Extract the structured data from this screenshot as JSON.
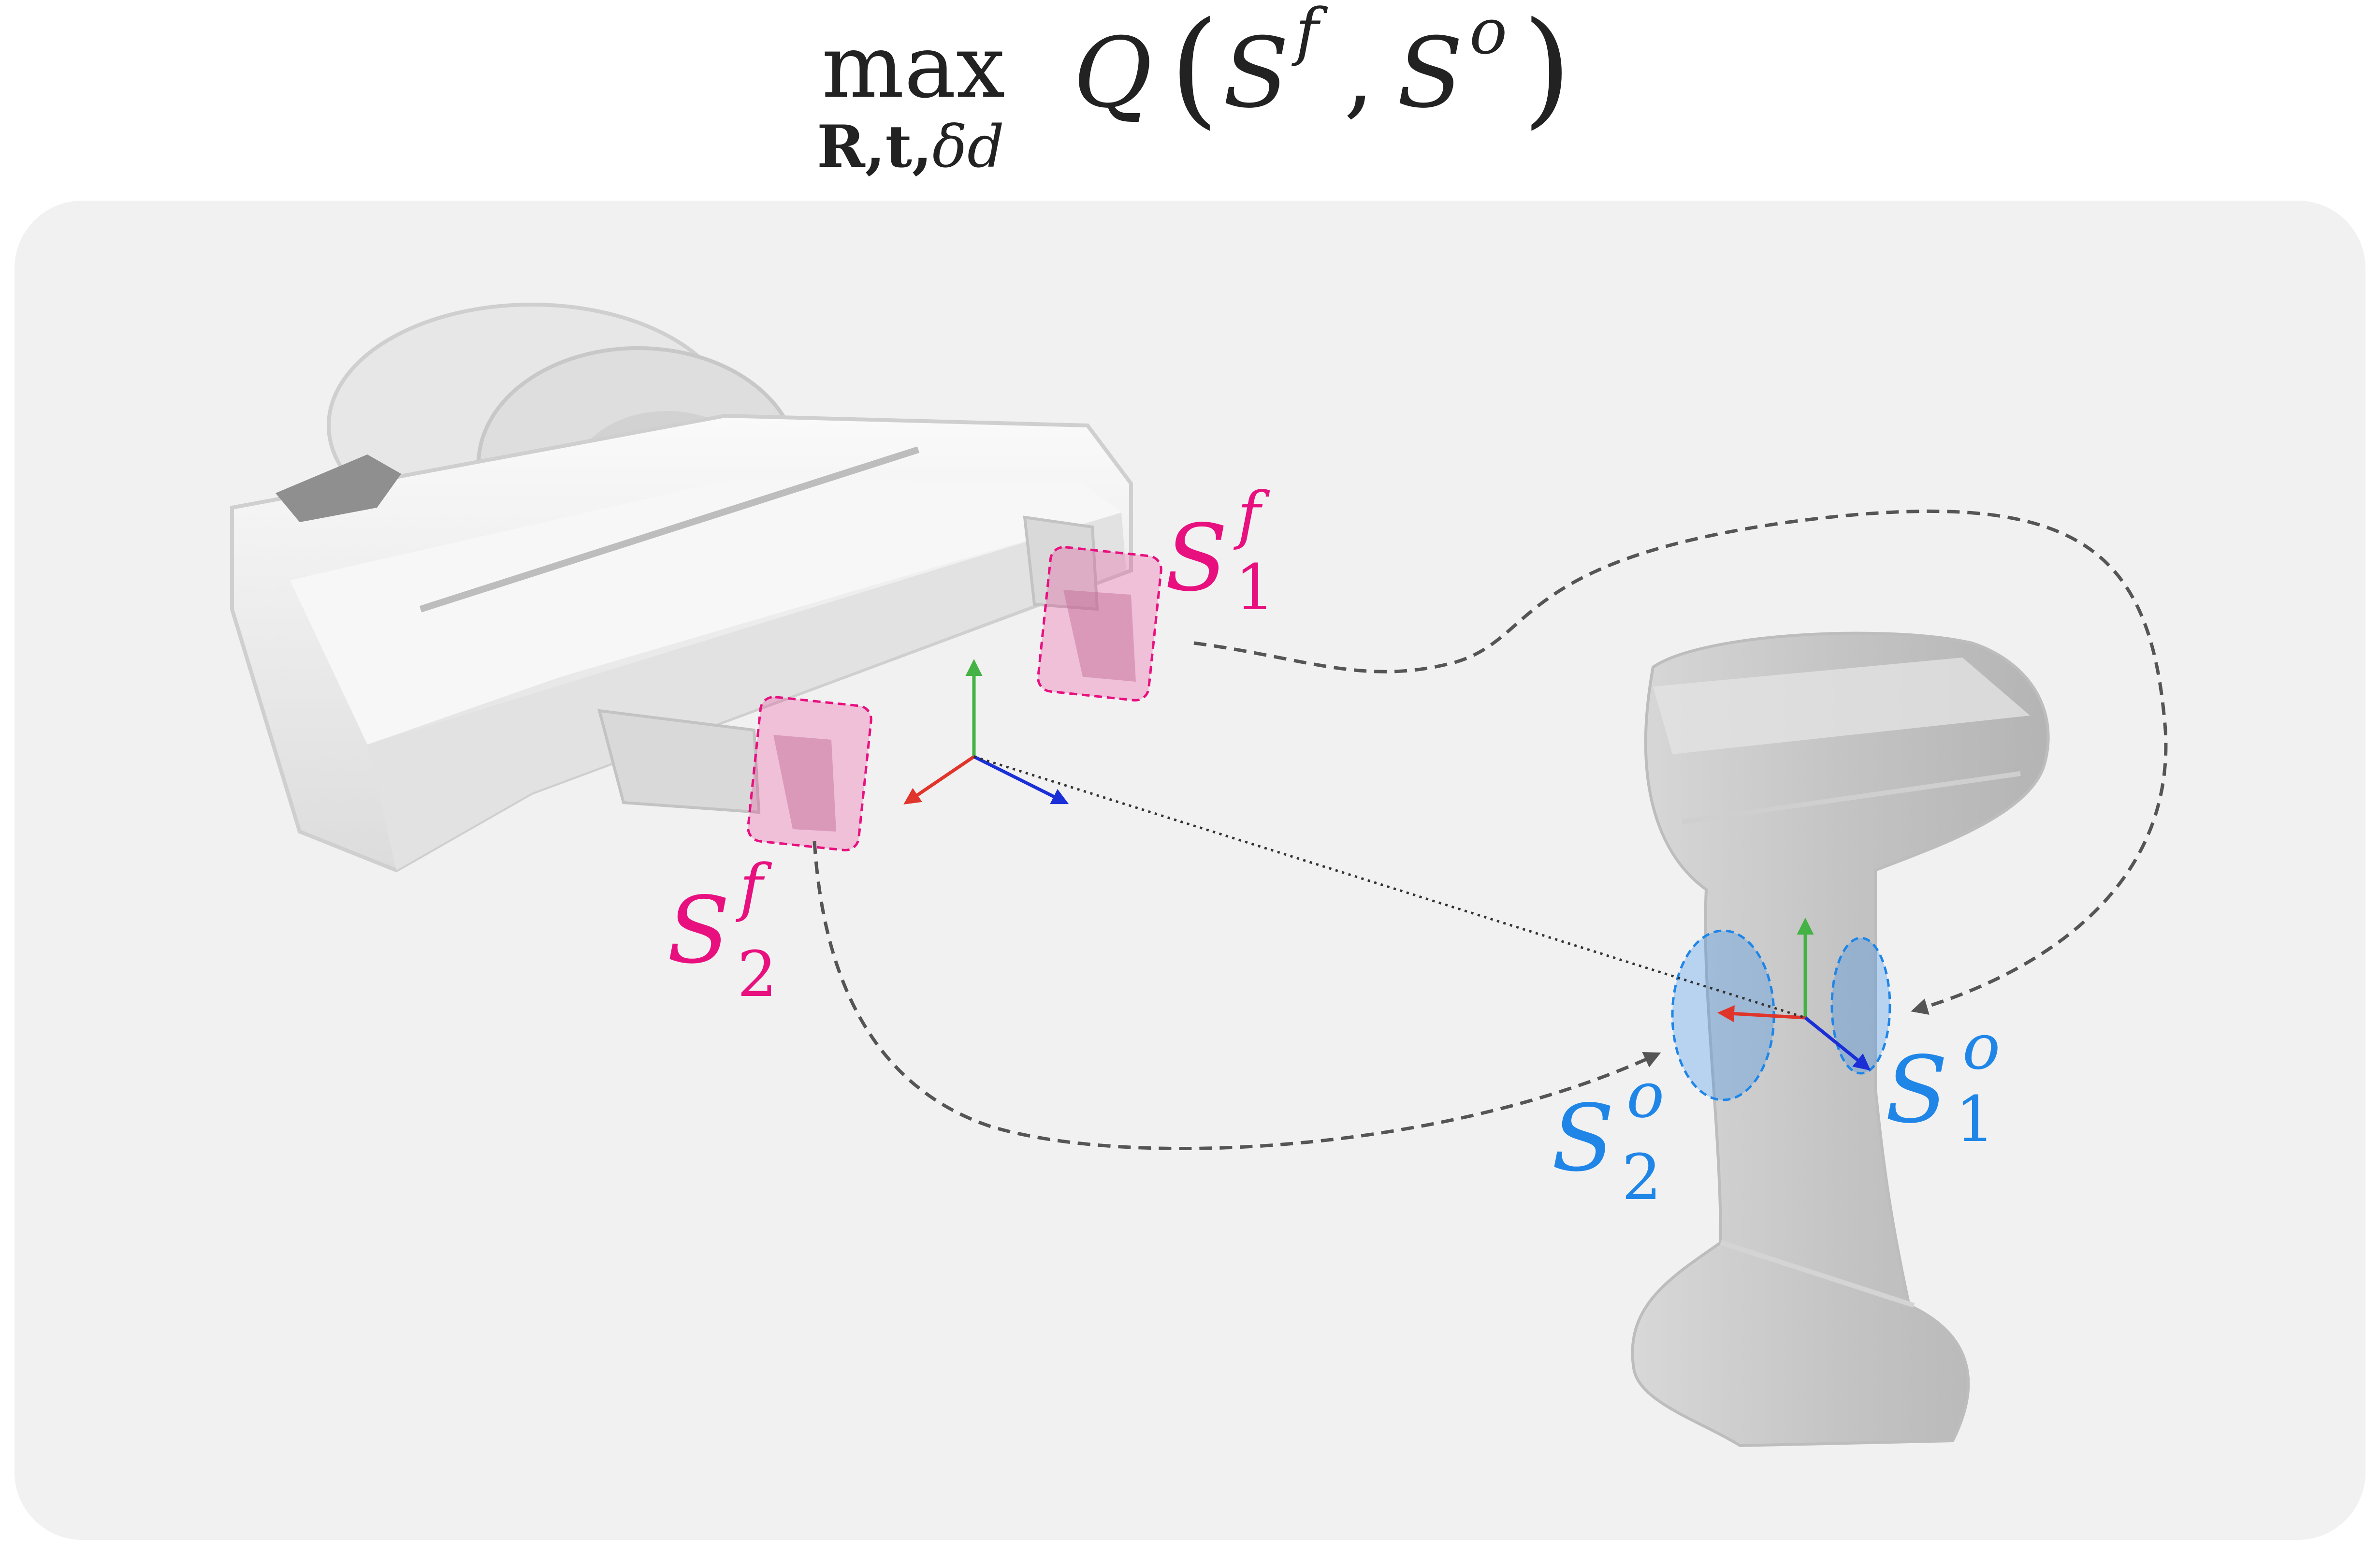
{
  "title": {
    "operator": "max",
    "variables_bold": "R,t,",
    "variables_rest": "δd",
    "function": "Q",
    "open_paren": "(",
    "close_paren": ")",
    "comma": ",",
    "arg1_base": "S",
    "arg1_sup": "f",
    "arg2_base": "S",
    "arg2_sup": "o"
  },
  "labels": {
    "gripper_finger_1": {
      "base": "S",
      "sup": "f",
      "sub": "1",
      "color": "#e8107f"
    },
    "gripper_finger_2": {
      "base": "S",
      "sup": "f",
      "sub": "2",
      "color": "#e8107f"
    },
    "object_surface_1": {
      "base": "S",
      "sup": "o",
      "sub": "1",
      "color": "#1f86e8"
    },
    "object_surface_2": {
      "base": "S",
      "sup": "o",
      "sub": "2",
      "color": "#1f86e8"
    }
  },
  "colors": {
    "panel": "#f1f1f1",
    "gripper_region": "#e8107f",
    "object_region": "#1f86e8",
    "axis_x": "#e0352b",
    "axis_y": "#44b244",
    "axis_z": "#1a2fd6",
    "correspondence": "#555555"
  }
}
